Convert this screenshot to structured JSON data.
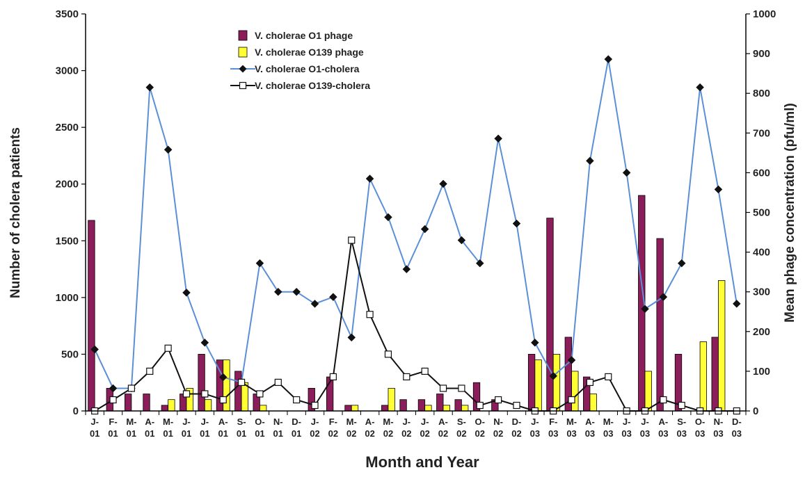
{
  "chart_data": {
    "type": "bar",
    "title": "",
    "xlabel": "Month and Year",
    "ylabel_left": "Number of cholera patients",
    "ylabel_right": "Mean phage concentration  (pfu/ml)",
    "ylim_left": [
      0,
      3500
    ],
    "ylim_right": [
      0,
      1000
    ],
    "yticks_left": [
      "0",
      "500",
      "1000",
      "1500",
      "2000",
      "2500",
      "3000",
      "3500"
    ],
    "yticks_right": [
      "0",
      "100",
      "200",
      "300",
      "400",
      "500",
      "600",
      "700",
      "800",
      "900",
      "1000"
    ],
    "categories": [
      [
        "J-",
        "01"
      ],
      [
        "F-",
        "01"
      ],
      [
        "M-",
        "01"
      ],
      [
        "A-",
        "01"
      ],
      [
        "M-",
        "01"
      ],
      [
        "J-",
        "01"
      ],
      [
        "J-",
        "01"
      ],
      [
        "A-",
        "01"
      ],
      [
        "S-",
        "01"
      ],
      [
        "O-",
        "01"
      ],
      [
        "N-",
        "01"
      ],
      [
        "D-",
        "01"
      ],
      [
        "J-",
        "02"
      ],
      [
        "F-",
        "02"
      ],
      [
        "M-",
        "02"
      ],
      [
        "A-",
        "02"
      ],
      [
        "M-",
        "02"
      ],
      [
        "J-",
        "02"
      ],
      [
        "J-",
        "02"
      ],
      [
        "A-",
        "02"
      ],
      [
        "S-",
        "02"
      ],
      [
        "O-",
        "02"
      ],
      [
        "N-",
        "02"
      ],
      [
        "D-",
        "02"
      ],
      [
        "J-",
        "03"
      ],
      [
        "F-",
        "03"
      ],
      [
        "M-",
        "03"
      ],
      [
        "A-",
        "03"
      ],
      [
        "M-",
        "03"
      ],
      [
        "J-",
        "03"
      ],
      [
        "J-",
        "03"
      ],
      [
        "A-",
        "03"
      ],
      [
        "S-",
        "03"
      ],
      [
        "O-",
        "03"
      ],
      [
        "N-",
        "03"
      ],
      [
        "D-",
        "03"
      ]
    ],
    "series": [
      {
        "name": "V. cholerae O1 phage",
        "kind": "bar",
        "axis": "left",
        "color": "#8b1d5a",
        "values": [
          1680,
          200,
          150,
          150,
          50,
          150,
          500,
          450,
          350,
          150,
          0,
          0,
          200,
          300,
          50,
          0,
          50,
          100,
          100,
          150,
          100,
          250,
          100,
          0,
          500,
          1700,
          650,
          300,
          0,
          0,
          1900,
          1520,
          500,
          0,
          650,
          0
        ]
      },
      {
        "name": "V. cholerae O139 phage",
        "kind": "bar",
        "axis": "left",
        "color": "#ffff33",
        "values": [
          0,
          0,
          0,
          0,
          100,
          200,
          100,
          450,
          250,
          50,
          0,
          0,
          0,
          0,
          50,
          0,
          200,
          0,
          50,
          50,
          50,
          0,
          0,
          0,
          450,
          500,
          350,
          150,
          0,
          0,
          350,
          0,
          0,
          610,
          1150,
          0
        ]
      },
      {
        "name": "V. cholerae O1-cholera",
        "kind": "line",
        "axis": "right",
        "color": "#5b8fd6",
        "marker": "diamond",
        "values": [
          155,
          57,
          57,
          815,
          658,
          298,
          172,
          85,
          72,
          372,
          300,
          300,
          270,
          287,
          185,
          585,
          488,
          357,
          458,
          572,
          430,
          372,
          686,
          472,
          172,
          88,
          128,
          630,
          886,
          600,
          257,
          287,
          372,
          815,
          558,
          270
        ]
      },
      {
        "name": "V. cholerae O139-cholera",
        "kind": "line",
        "axis": "right",
        "color": "#111111",
        "marker": "square",
        "values": [
          0,
          28,
          57,
          100,
          158,
          43,
          43,
          28,
          72,
          43,
          72,
          28,
          14,
          86,
          430,
          243,
          143,
          86,
          100,
          57,
          57,
          14,
          28,
          14,
          0,
          0,
          28,
          72,
          86,
          0,
          0,
          28,
          14,
          0,
          0,
          0
        ]
      }
    ],
    "legend_position": "top-left",
    "grid": false
  }
}
